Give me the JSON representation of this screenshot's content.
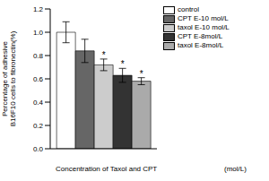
{
  "chart_data": {
    "type": "bar",
    "ylabel": "Percentage of adhesive B16F10 cells to fibronectin(%)",
    "xlabel": "Concentration of Taxol and CPT",
    "categories": [
      null
    ],
    "series": [
      {
        "name": "control",
        "color": "#ffffff",
        "values": [
          1.0
        ],
        "errors": [
          0.09
        ]
      },
      {
        "name": "CPT E-10 mol/L",
        "color": "#666666",
        "values": [
          0.84
        ],
        "errors": [
          0.1
        ]
      },
      {
        "name": "taxol E-10 mol/L",
        "color": "#cccccc",
        "values": [
          0.72
        ],
        "errors": [
          0.05
        ]
      },
      {
        "name": "CPT E-8mol/L",
        "color": "#333333",
        "values": [
          0.63
        ],
        "errors": [
          0.06
        ]
      },
      {
        "name": "taxol E-8mol/L",
        "color": "#aaaaaa",
        "values": [
          0.58
        ],
        "errors": [
          0.03
        ]
      }
    ],
    "ylim": [
      0,
      1.2
    ],
    "yticks": [
      {
        "value": 0,
        "label": "0.0"
      },
      0.2,
      0.4,
      0.6,
      0.8,
      {
        "value": 1,
        "label": "1.0"
      },
      1.2
    ],
    "legend": "right",
    "annotations": [
      {
        "text": "*",
        "series": "taxol E-10 mol/L"
      },
      {
        "text": "*",
        "series": "CPT E-8mol/L"
      },
      {
        "text": "*",
        "series": "taxol E-8mol/L"
      },
      {
        "text": "(mol/L)"
      }
    ]
  }
}
